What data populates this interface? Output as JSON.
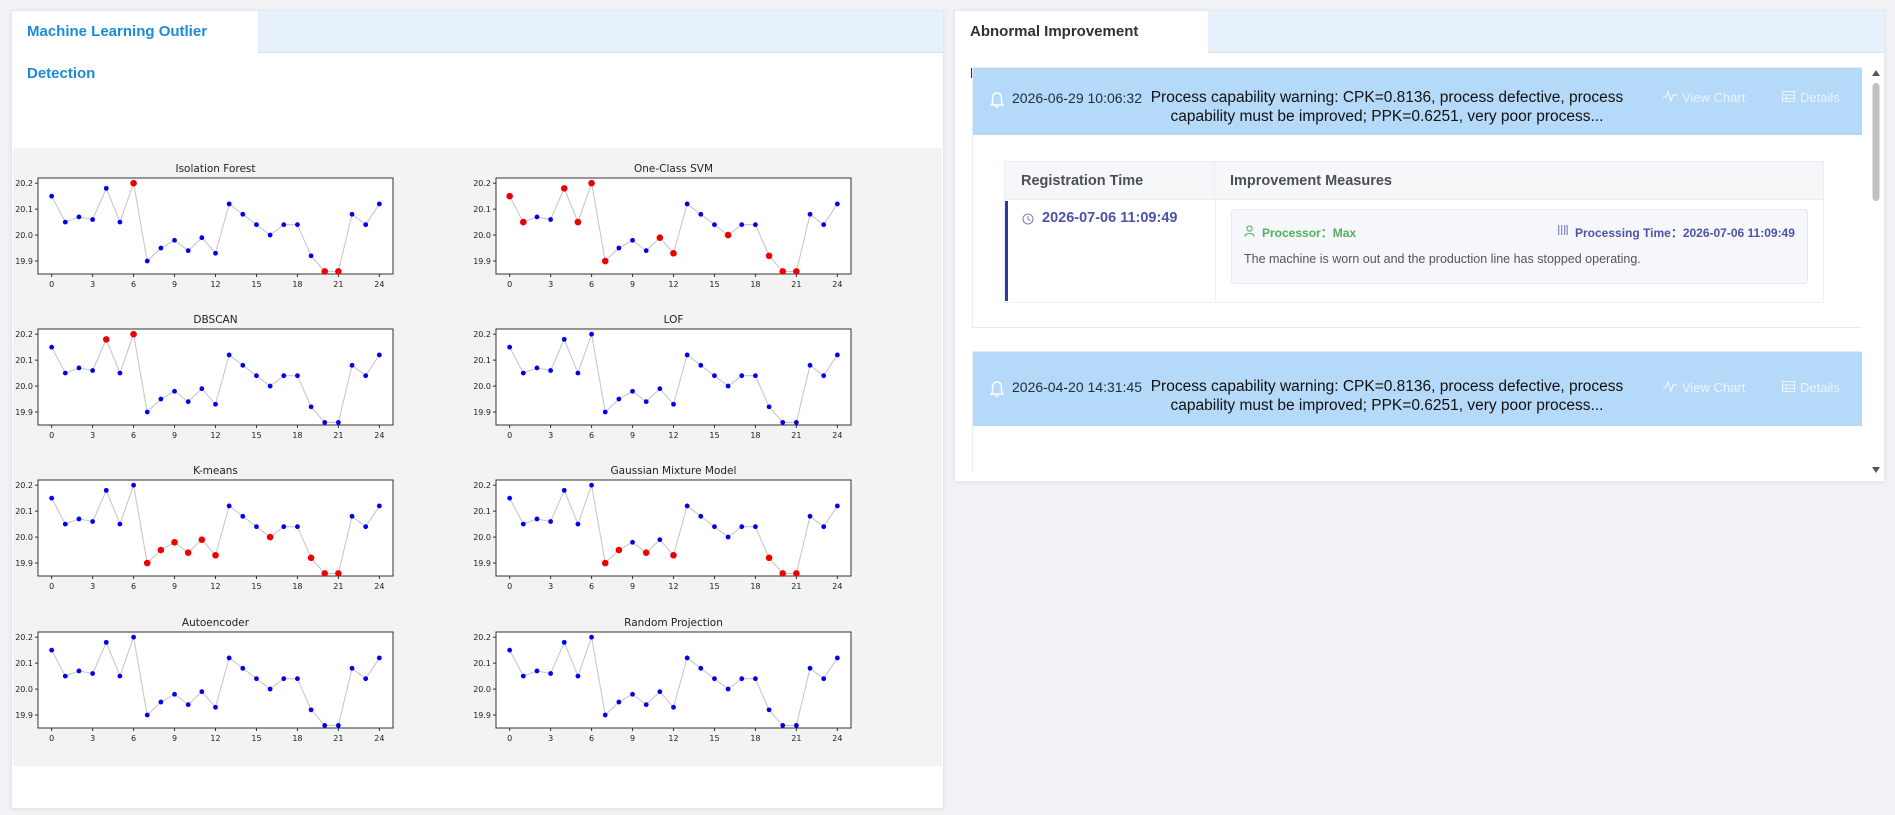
{
  "left_panel": {
    "tab_title": "Machine Learning Outlier Detection"
  },
  "right_panel": {
    "tab_title": "Abnormal Improvement Measures"
  },
  "shared_series": [
    20.15,
    20.05,
    20.07,
    20.06,
    20.18,
    20.05,
    20.2,
    19.9,
    19.95,
    19.98,
    19.94,
    19.99,
    19.93,
    20.12,
    20.08,
    20.04,
    20.0,
    20.04,
    20.04,
    19.92,
    19.86,
    19.86,
    20.08,
    20.04,
    20.12
  ],
  "chart_data": [
    {
      "type": "scatter",
      "title": "Isolation Forest",
      "outliers": [
        6,
        20,
        21
      ]
    },
    {
      "type": "scatter",
      "title": "One-Class SVM",
      "outliers": [
        0,
        1,
        4,
        5,
        6,
        7,
        11,
        12,
        16,
        19,
        20,
        21
      ]
    },
    {
      "type": "scatter",
      "title": "DBSCAN",
      "outliers": [
        4,
        6
      ]
    },
    {
      "type": "scatter",
      "title": "LOF",
      "outliers": []
    },
    {
      "type": "scatter",
      "title": "K-means",
      "outliers": [
        7,
        8,
        9,
        10,
        11,
        12,
        16,
        19,
        20,
        21
      ]
    },
    {
      "type": "scatter",
      "title": "Gaussian Mixture Model",
      "outliers": [
        7,
        8,
        10,
        12,
        19,
        20,
        21
      ]
    },
    {
      "type": "scatter",
      "title": "Autoencoder",
      "outliers": []
    },
    {
      "type": "scatter",
      "title": "Random Projection",
      "outliers": []
    }
  ],
  "axis": {
    "x_ticks": [
      "0",
      "3",
      "6",
      "9",
      "12",
      "15",
      "18",
      "21",
      "24"
    ],
    "y_ticks": [
      "20.2",
      "20.1",
      "20.0",
      "19.9"
    ],
    "ylim": [
      19.85,
      20.22
    ],
    "xlim": [
      -1,
      25
    ]
  },
  "colors": {
    "normal": "#0000ee",
    "outlier": "#ee0000",
    "line": "#c8c8c8",
    "accent": "#1a8bd8"
  },
  "alerts": [
    {
      "time": "2026-06-29 10:06:32",
      "message": "Process capability warning: CPK=0.8136, process defective, process capability must be improved; PPK=0.6251, very poor process...",
      "view_chart": "View Chart",
      "details": "Details",
      "table": {
        "col1": "Registration Time",
        "col2": "Improvement Measures",
        "reg_time": "2026-07-06 11:09:49",
        "processor_label": "Processor：Max",
        "processing_time": "Processing Time：2026-07-06 11:09:49",
        "description": "The machine is worn out and the production line has stopped operating."
      }
    },
    {
      "time": "2026-04-20 14:31:45",
      "message": "Process capability warning: CPK=0.8136, process defective, process capability must be improved; PPK=0.6251, very poor process...",
      "view_chart": "View Chart",
      "details": "Details"
    }
  ]
}
